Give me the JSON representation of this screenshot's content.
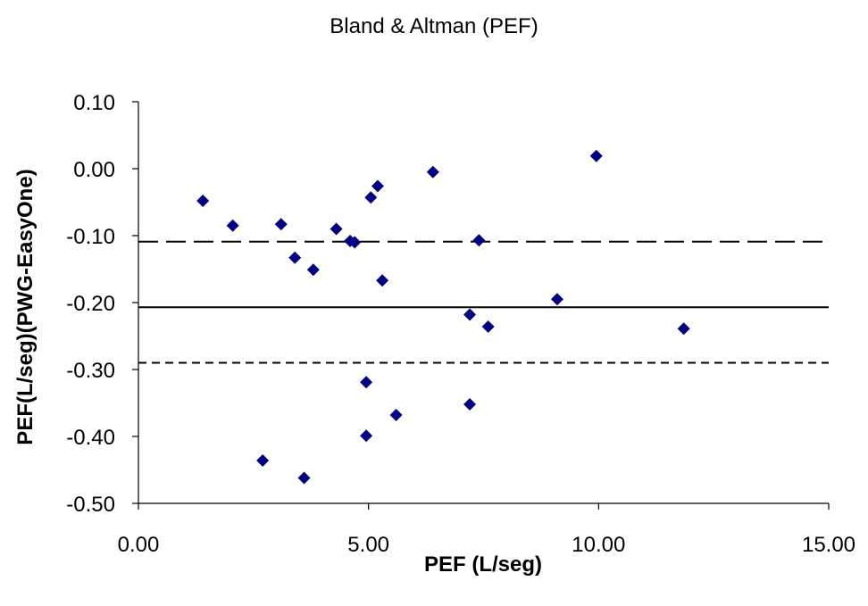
{
  "chart_data": {
    "type": "scatter",
    "title": "Bland & Altman (PEF)",
    "xlabel": "PEF (L/seg)",
    "ylabel": "PEF(L/seg)(PWG-EasyOne)",
    "xlim": [
      0,
      15
    ],
    "ylim": [
      -0.5,
      0.1
    ],
    "x_ticks": [
      "0.00",
      "5.00",
      "10.00",
      "15.00"
    ],
    "y_ticks": [
      "0.10",
      "0.00",
      "-0.10",
      "-0.20",
      "-0.30",
      "-0.40",
      "-0.50"
    ],
    "x_tick_values": [
      0,
      5,
      10,
      15
    ],
    "y_tick_values": [
      0.1,
      0.0,
      -0.1,
      -0.2,
      -0.3,
      -0.4,
      -0.5
    ],
    "marker_color": "#000080",
    "points": [
      {
        "x": 1.4,
        "y": -0.048
      },
      {
        "x": 2.05,
        "y": -0.085
      },
      {
        "x": 2.7,
        "y": -0.436
      },
      {
        "x": 3.1,
        "y": -0.083
      },
      {
        "x": 3.4,
        "y": -0.133
      },
      {
        "x": 3.6,
        "y": -0.462
      },
      {
        "x": 3.8,
        "y": -0.151
      },
      {
        "x": 4.3,
        "y": -0.09
      },
      {
        "x": 4.6,
        "y": -0.108
      },
      {
        "x": 4.7,
        "y": -0.11
      },
      {
        "x": 4.95,
        "y": -0.319
      },
      {
        "x": 4.95,
        "y": -0.399
      },
      {
        "x": 5.05,
        "y": -0.043
      },
      {
        "x": 5.2,
        "y": -0.026
      },
      {
        "x": 5.3,
        "y": -0.167
      },
      {
        "x": 5.6,
        "y": -0.368
      },
      {
        "x": 6.4,
        "y": -0.005
      },
      {
        "x": 7.2,
        "y": -0.218
      },
      {
        "x": 7.2,
        "y": -0.352
      },
      {
        "x": 7.4,
        "y": -0.107
      },
      {
        "x": 7.6,
        "y": -0.236
      },
      {
        "x": 9.1,
        "y": -0.195
      },
      {
        "x": 9.95,
        "y": 0.019
      },
      {
        "x": 11.85,
        "y": -0.239
      }
    ],
    "reference_lines": [
      {
        "kind": "upper-limit",
        "y": -0.109,
        "style": "long-dash"
      },
      {
        "kind": "mean-difference",
        "y": -0.207,
        "style": "solid"
      },
      {
        "kind": "lower-limit",
        "y": -0.29,
        "style": "short-dash"
      }
    ],
    "grid": false,
    "legend": "none"
  }
}
